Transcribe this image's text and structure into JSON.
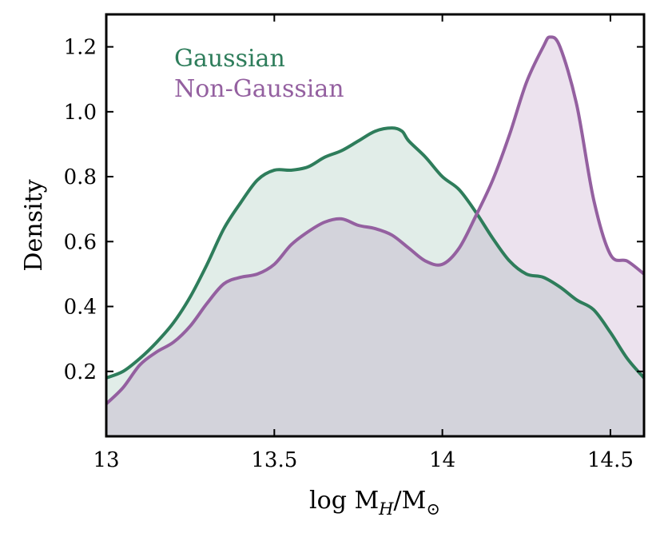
{
  "chart_data": {
    "type": "area",
    "title": "",
    "xlabel": "log M_H/M_⊙",
    "ylabel": "Density",
    "xlim": [
      13.0,
      14.6
    ],
    "ylim": [
      0.0,
      1.3
    ],
    "xticks": [
      13.0,
      13.5,
      14.0,
      14.5
    ],
    "xtick_labels": [
      "13",
      "13.5",
      "14",
      "14.5"
    ],
    "yticks": [
      0.2,
      0.4,
      0.6,
      0.8,
      1.0,
      1.2
    ],
    "ytick_labels": [
      "0.2",
      "0.4",
      "0.6",
      "0.8",
      "1.0",
      "1.2"
    ],
    "grid": false,
    "legend_position": "top-left",
    "series": [
      {
        "name": "Gaussian",
        "color": "#2e7d5b",
        "fill": "#e0eae5",
        "x": [
          13.0,
          13.05,
          13.1,
          13.15,
          13.2,
          13.25,
          13.3,
          13.35,
          13.4,
          13.45,
          13.5,
          13.55,
          13.6,
          13.65,
          13.7,
          13.75,
          13.8,
          13.85,
          13.88,
          13.9,
          13.95,
          14.0,
          14.05,
          14.1,
          14.15,
          14.2,
          14.25,
          14.3,
          14.35,
          14.4,
          14.45,
          14.5,
          14.55,
          14.6
        ],
        "y": [
          0.18,
          0.2,
          0.24,
          0.29,
          0.35,
          0.43,
          0.53,
          0.64,
          0.72,
          0.79,
          0.82,
          0.82,
          0.83,
          0.86,
          0.88,
          0.91,
          0.94,
          0.95,
          0.94,
          0.91,
          0.86,
          0.8,
          0.76,
          0.69,
          0.61,
          0.54,
          0.5,
          0.49,
          0.46,
          0.42,
          0.39,
          0.32,
          0.24,
          0.18
        ]
      },
      {
        "name": "Non-Gaussian",
        "color": "#9460a0",
        "fill": "#ece4ef",
        "x": [
          13.0,
          13.05,
          13.1,
          13.15,
          13.2,
          13.25,
          13.3,
          13.35,
          13.4,
          13.45,
          13.5,
          13.55,
          13.6,
          13.65,
          13.7,
          13.75,
          13.8,
          13.85,
          13.9,
          13.95,
          14.0,
          14.05,
          14.1,
          14.15,
          14.2,
          14.25,
          14.3,
          14.32,
          14.35,
          14.4,
          14.45,
          14.5,
          14.55,
          14.6
        ],
        "y": [
          0.1,
          0.15,
          0.22,
          0.26,
          0.29,
          0.34,
          0.41,
          0.47,
          0.49,
          0.5,
          0.53,
          0.59,
          0.63,
          0.66,
          0.67,
          0.65,
          0.64,
          0.62,
          0.58,
          0.54,
          0.53,
          0.58,
          0.68,
          0.79,
          0.93,
          1.09,
          1.2,
          1.23,
          1.2,
          1.02,
          0.73,
          0.56,
          0.54,
          0.5
        ]
      }
    ],
    "overlap_fill": "#d4d6da"
  }
}
